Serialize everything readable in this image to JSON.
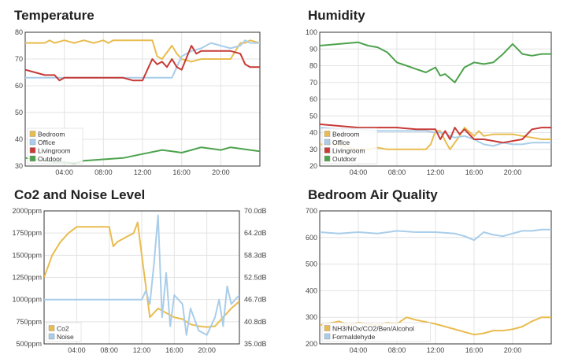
{
  "colors": {
    "bedroom": "#e9bc4f",
    "office": "#a9cdea",
    "livingroom": "#c73a36",
    "outdoor": "#4da24d",
    "grid": "#e3e3e3",
    "plot_border": "#333333"
  },
  "chart_data": [
    {
      "id": "temperature",
      "type": "line",
      "title": "Temperature",
      "x_ticks": [
        "04:00",
        "08:00",
        "12:00",
        "16:00",
        "20:00"
      ],
      "xlim": [
        0,
        24
      ],
      "ylim": [
        30,
        80
      ],
      "y_ticks": [
        30,
        40,
        50,
        60,
        70,
        80
      ],
      "legend_position": "bottom-left",
      "series": [
        {
          "name": "Bedroom",
          "color_key": "bedroom",
          "x": [
            0,
            2,
            2.5,
            3,
            4,
            5,
            6,
            7,
            8,
            8.5,
            9,
            10,
            11,
            12,
            13,
            13.5,
            14,
            15,
            15.5,
            16,
            17,
            18,
            19,
            20,
            21,
            22,
            22.5,
            23,
            24
          ],
          "y": [
            76,
            76,
            77,
            76,
            77,
            76,
            77,
            76,
            77,
            76,
            77,
            77,
            77,
            77,
            77,
            71,
            70,
            75,
            72,
            70,
            69,
            70,
            70,
            70,
            70,
            76,
            76,
            77,
            76
          ]
        },
        {
          "name": "Office",
          "color_key": "office",
          "x": [
            0,
            4,
            5,
            6,
            8,
            10,
            12,
            14,
            15,
            16,
            17,
            18,
            19,
            20,
            21,
            22,
            22.5,
            23,
            24
          ],
          "y": [
            63,
            63,
            63,
            63,
            63,
            63,
            63,
            63,
            63,
            71,
            73,
            74,
            76,
            75,
            74,
            75,
            77,
            76,
            76
          ]
        },
        {
          "name": "Livingroom",
          "color_key": "livingroom",
          "x": [
            0,
            1,
            2,
            3,
            3.5,
            4,
            5,
            6,
            8,
            10,
            11,
            12,
            12.5,
            13,
            13.5,
            14,
            14.5,
            15,
            15.5,
            16,
            17,
            17.5,
            18,
            19,
            20,
            21,
            22,
            22.5,
            23,
            24
          ],
          "y": [
            66,
            65,
            64,
            64,
            62,
            63,
            63,
            63,
            63,
            63,
            62,
            62,
            66,
            70,
            68,
            69,
            67,
            70,
            67,
            66,
            75,
            72,
            73,
            73,
            73,
            73,
            72,
            68,
            67,
            67
          ]
        },
        {
          "name": "Outdoor",
          "color_key": "outdoor",
          "x": [
            0,
            2,
            3,
            4,
            5,
            6,
            8,
            10,
            12,
            14,
            15,
            16,
            17,
            18,
            19,
            20,
            21,
            22,
            23,
            24
          ],
          "y": [
            33,
            32,
            31.5,
            31.5,
            31,
            32,
            32.5,
            33,
            34.5,
            36,
            35.5,
            35,
            36,
            37,
            36.5,
            36,
            37,
            36.5,
            36,
            35.5
          ]
        }
      ]
    },
    {
      "id": "humidity",
      "type": "line",
      "title": "Humidity",
      "x_ticks": [
        "04:00",
        "08:00",
        "12:00",
        "16:00",
        "20:00"
      ],
      "xlim": [
        0,
        24
      ],
      "ylim": [
        20,
        100
      ],
      "y_ticks": [
        20,
        30,
        40,
        50,
        60,
        70,
        80,
        90,
        100
      ],
      "legend_position": "bottom-left",
      "series": [
        {
          "name": "Bedroom",
          "color_key": "bedroom",
          "x": [
            0,
            2,
            3,
            4,
            5,
            6,
            7,
            8,
            9,
            10,
            11,
            11.5,
            12,
            12.5,
            13,
            13.5,
            14,
            14.5,
            15,
            16,
            16.5,
            17,
            18,
            19,
            20,
            21,
            22,
            23,
            24
          ],
          "y": [
            33,
            33,
            31,
            30,
            30,
            31,
            30,
            30,
            30,
            30,
            30,
            33,
            41,
            41,
            35,
            30,
            34,
            38,
            43,
            38,
            41,
            38,
            39,
            39,
            39,
            38,
            37,
            36,
            36
          ]
        },
        {
          "name": "Office",
          "color_key": "office",
          "x": [
            0,
            2,
            4,
            6,
            8,
            10,
            11,
            12,
            13,
            13.5,
            14,
            15,
            16,
            17,
            18,
            19,
            20,
            21,
            22,
            23,
            24
          ],
          "y": [
            43,
            42,
            42,
            41,
            41,
            41,
            41,
            40,
            40,
            38,
            37,
            38,
            36,
            33,
            32,
            34,
            33,
            33,
            34,
            34,
            34
          ]
        },
        {
          "name": "Livingroom",
          "color_key": "livingroom",
          "x": [
            0,
            2,
            4,
            6,
            8,
            10,
            11,
            12,
            12.5,
            13,
            13.5,
            14,
            14.5,
            15,
            16,
            17,
            18,
            19,
            20,
            21,
            22,
            23,
            24
          ],
          "y": [
            45,
            44,
            43,
            43,
            43,
            42,
            42,
            42,
            36,
            41,
            36,
            43,
            39,
            42,
            36,
            36,
            35,
            34,
            35,
            36,
            42,
            43,
            43
          ]
        },
        {
          "name": "Outdoor",
          "color_key": "outdoor",
          "x": [
            0,
            2,
            4,
            5,
            6,
            7,
            8,
            9,
            10,
            11,
            12,
            12.5,
            13,
            14,
            15,
            16,
            17,
            18,
            19,
            20,
            21,
            22,
            23,
            24
          ],
          "y": [
            92,
            93,
            94,
            92,
            91,
            88,
            82,
            80,
            78,
            76,
            79,
            74,
            75,
            70,
            79,
            82,
            81,
            82,
            87,
            93,
            87,
            86,
            87,
            87
          ]
        }
      ]
    },
    {
      "id": "co2-noise",
      "type": "line",
      "title": "Co2 and Noise Level",
      "x_ticks": [
        "04:00",
        "08:00",
        "12:00",
        "16:00",
        "20:00"
      ],
      "xlim": [
        0,
        24
      ],
      "ylim": [
        500,
        2000
      ],
      "y_ticks": [
        500,
        750,
        1000,
        1250,
        1500,
        1750,
        2000
      ],
      "y_tick_labels": [
        "500ppm",
        "750ppm",
        "1000ppm",
        "1250ppm",
        "1500ppm",
        "1750ppm",
        "2000ppm"
      ],
      "y2_tick_labels": [
        "35.0dB",
        "40.8dB",
        "46.7dB",
        "52.5dB",
        "58.3dB",
        "64.2dB",
        "70.0dB"
      ],
      "legend_position": "bottom-left",
      "series": [
        {
          "name": "Co2",
          "color_key": "bedroom",
          "x": [
            0,
            1,
            2,
            3,
            4,
            5,
            6,
            7,
            8,
            8.5,
            9,
            10,
            11,
            11.5,
            12,
            12.5,
            13,
            14,
            15,
            16,
            17,
            18,
            19,
            20,
            21,
            22,
            23,
            24
          ],
          "y": [
            1250,
            1500,
            1650,
            1750,
            1820,
            1820,
            1820,
            1820,
            1820,
            1600,
            1650,
            1700,
            1750,
            1870,
            1500,
            1150,
            800,
            900,
            850,
            800,
            780,
            720,
            700,
            690,
            700,
            800,
            900,
            980
          ]
        },
        {
          "name": "Noise",
          "color_key": "office",
          "x": [
            0,
            2,
            4,
            6,
            8,
            10,
            11,
            12,
            12.5,
            13,
            13.5,
            14,
            14.5,
            15,
            15.5,
            16,
            17,
            17.5,
            18,
            19,
            20,
            21,
            21.5,
            22,
            22.5,
            23,
            24
          ],
          "y": [
            1000,
            1000,
            1000,
            1000,
            1000,
            1000,
            1000,
            1000,
            1100,
            950,
            1400,
            1950,
            800,
            1300,
            700,
            1050,
            950,
            600,
            900,
            650,
            600,
            800,
            1000,
            700,
            1150,
            950,
            1050
          ]
        }
      ]
    },
    {
      "id": "bedroom-air-quality",
      "type": "line",
      "title": "Bedroom Air Quality",
      "x_ticks": [
        "04:00",
        "08:00",
        "12:00",
        "16:00",
        "20:00"
      ],
      "xlim": [
        0,
        24
      ],
      "ylim": [
        200,
        700
      ],
      "y_ticks": [
        200,
        300,
        400,
        500,
        600,
        700
      ],
      "legend_position": "bottom-left",
      "series": [
        {
          "name": "NH3/NOx/CO2/Ben/Alcohol",
          "color_key": "bedroom",
          "x": [
            0,
            2,
            3,
            4,
            5,
            6,
            7,
            8,
            9,
            10,
            12,
            14,
            15,
            16,
            17,
            18,
            19,
            20,
            21,
            22,
            23,
            24
          ],
          "y": [
            270,
            285,
            270,
            280,
            275,
            270,
            280,
            275,
            300,
            290,
            275,
            255,
            245,
            235,
            240,
            250,
            250,
            255,
            265,
            285,
            300,
            300
          ]
        },
        {
          "name": "Formaldehyde",
          "color_key": "office",
          "x": [
            0,
            2,
            4,
            6,
            8,
            10,
            12,
            14,
            15,
            16,
            17,
            18,
            19,
            20,
            21,
            22,
            23,
            24
          ],
          "y": [
            620,
            615,
            620,
            615,
            625,
            620,
            620,
            615,
            605,
            590,
            620,
            610,
            605,
            615,
            625,
            625,
            630,
            630
          ]
        }
      ]
    }
  ]
}
